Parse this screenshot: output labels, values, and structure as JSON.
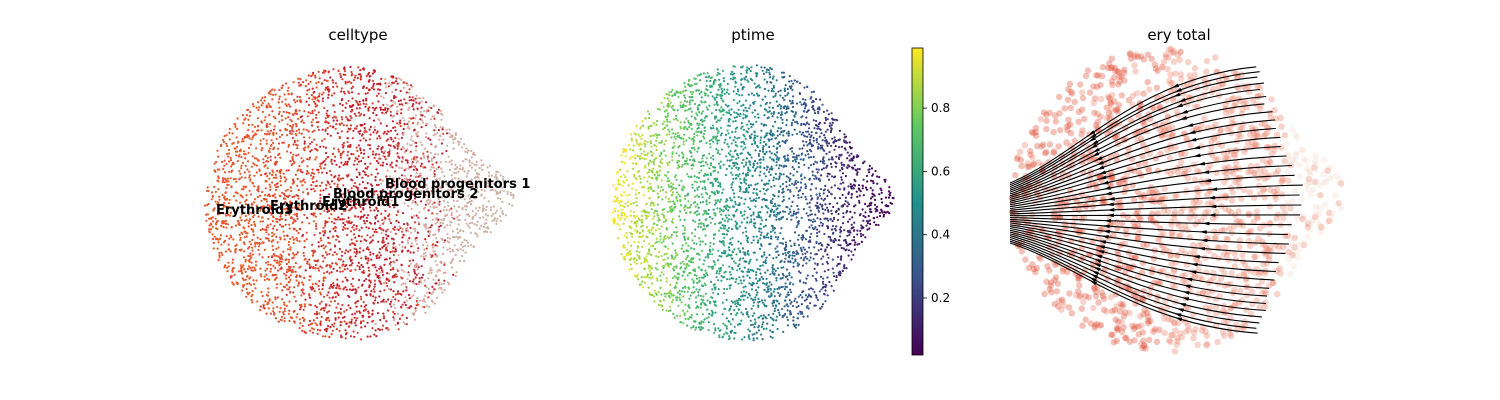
{
  "chart_data": [
    {
      "type": "scatter",
      "title": "celltype",
      "series": [
        {
          "name": "Erythroid3",
          "color": "#e8562a",
          "x": [
            -1.0
          ],
          "y": [
            0.0
          ]
        },
        {
          "name": "Erythroid2",
          "color": "#d94030",
          "x": [
            -0.4
          ],
          "y": [
            0.05
          ]
        },
        {
          "name": "Erythroid1",
          "color": "#c0202e",
          "x": [
            0.15
          ],
          "y": [
            0.1
          ]
        },
        {
          "name": "Blood progenitors 2",
          "color": "#d9a99f",
          "x": [
            0.45
          ],
          "y": [
            0.2
          ]
        },
        {
          "name": "Blood progenitors 1",
          "color": "#c9b3a4",
          "x": [
            0.85
          ],
          "y": [
            0.3
          ]
        }
      ],
      "annotations": [
        "Erythroid3",
        "Erythroid2",
        "Erythroid1",
        "Blood progenitors 2",
        "Blood progenitors 1"
      ],
      "grid": false
    },
    {
      "type": "scatter",
      "title": "ptime",
      "colorbar": {
        "ticks": [
          "0.2",
          "0.4",
          "0.6",
          "0.8"
        ],
        "tick_values": [
          0.2,
          0.4,
          0.6,
          0.8
        ],
        "range": [
          0.02,
          0.99
        ],
        "colormap": "viridis",
        "colors": [
          "#440154",
          "#3b528b",
          "#21918c",
          "#5ec962",
          "#fde725"
        ]
      },
      "gradient": "high ptime at left, low ptime at right",
      "grid": false
    },
    {
      "type": "scatter",
      "title": "ery total",
      "overlay": "velocity streamlines with arrowheads",
      "point_colors": [
        "#f2dcd2",
        "#e8816a",
        "#e04c35"
      ],
      "grid": false
    }
  ]
}
